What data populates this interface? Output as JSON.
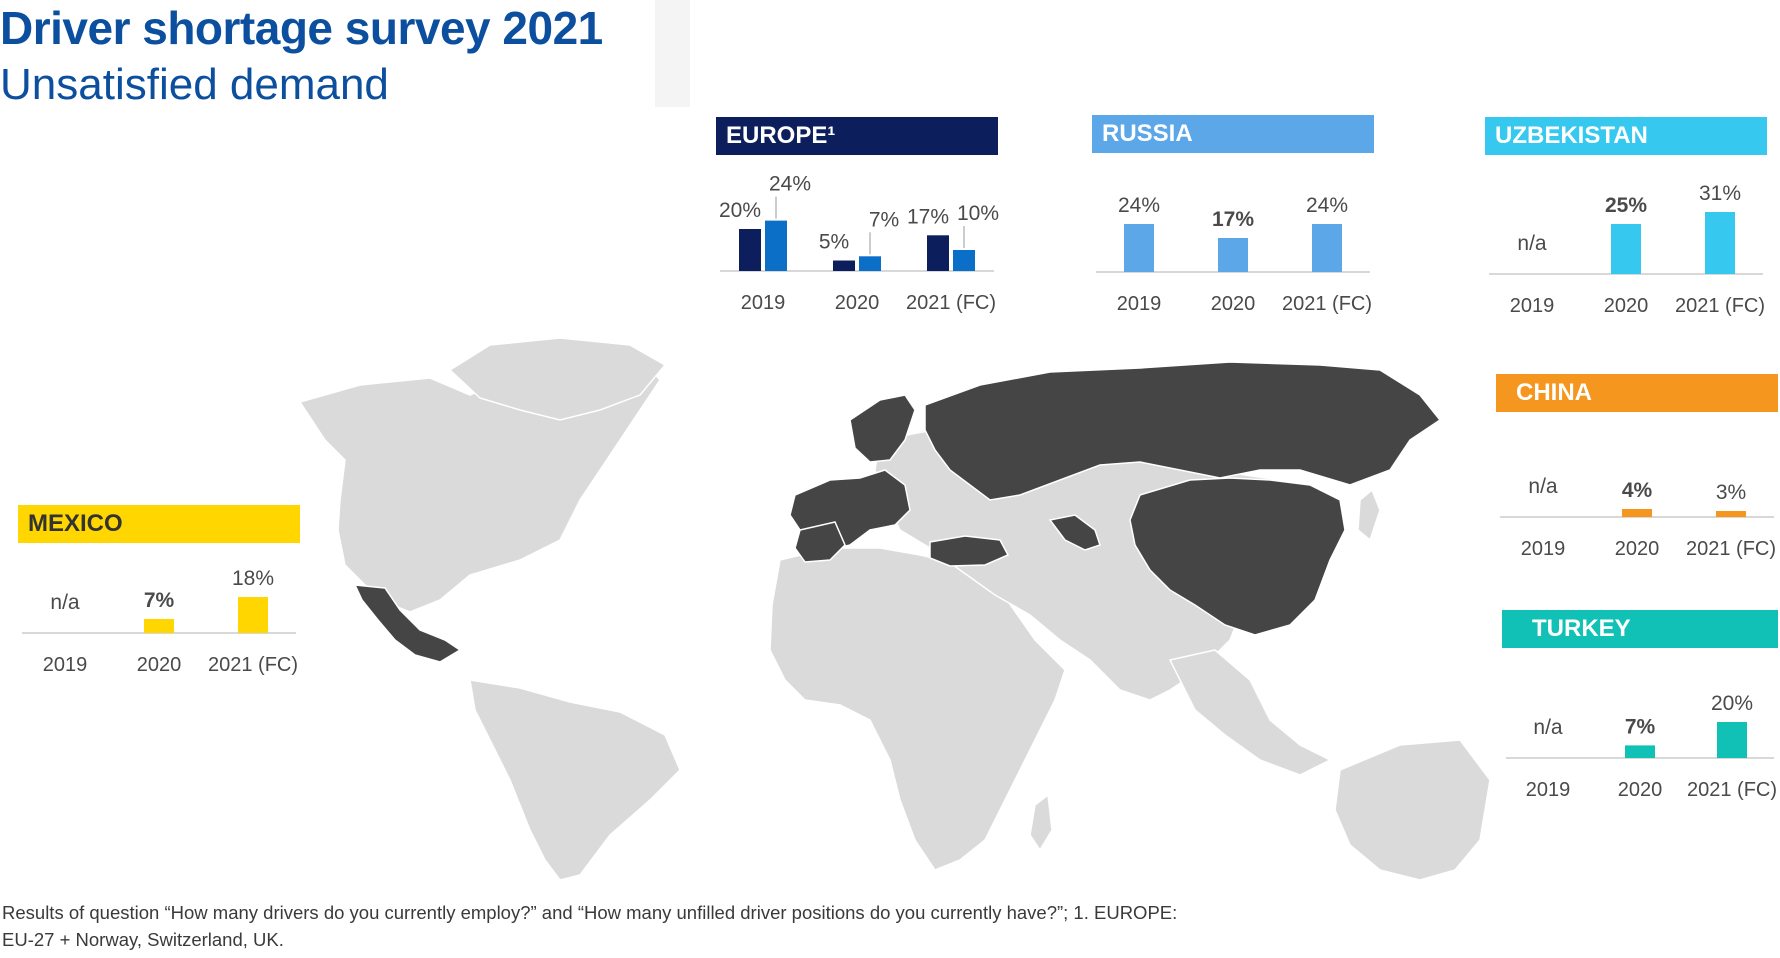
{
  "title": "Driver shortage survey 2021",
  "subtitle": "Unsatisfied demand",
  "footnote": "Results of question “How many drivers do you currently employ?” and “How many unfilled driver positions do you currently have?”; 1. EUROPE: EU-27 + Norway, Switzerland, UK.",
  "colors": {
    "map_land": "#dadada",
    "map_highlight": "#454545",
    "europe_dark": "#0c1f5c",
    "europe_light": "#0b6fc7",
    "russia": "#5ba7e8",
    "uzbekistan": "#37c8f0",
    "china": "#f5961e",
    "turkey": "#12c1b6",
    "mexico": "#ffd600"
  },
  "chart_data": [
    {
      "type": "bar",
      "title": "EUROPE¹",
      "categories": [
        "2019",
        "2020",
        "2021 (FC)"
      ],
      "series": [
        {
          "values": [
            20,
            5,
            17
          ],
          "labels": [
            "20%",
            "5%",
            "17%"
          ]
        },
        {
          "values": [
            24,
            7,
            10
          ],
          "labels": [
            "24%",
            "7%",
            "10%"
          ]
        }
      ]
    },
    {
      "type": "bar",
      "title": "RUSSIA",
      "categories": [
        "2019",
        "2020",
        "2021 (FC)"
      ],
      "series": [
        {
          "values": [
            24,
            17,
            24
          ],
          "labels": [
            "24%",
            "17%",
            "24%"
          ]
        }
      ]
    },
    {
      "type": "bar",
      "title": "UZBEKISTAN",
      "categories": [
        "2019",
        "2020",
        "2021 (FC)"
      ],
      "series": [
        {
          "values": [
            null,
            25,
            31
          ],
          "labels": [
            "n/a",
            "25%",
            "31%"
          ]
        }
      ]
    },
    {
      "type": "bar",
      "title": "CHINA",
      "categories": [
        "2019",
        "2020",
        "2021 (FC)"
      ],
      "series": [
        {
          "values": [
            null,
            4,
            3
          ],
          "labels": [
            "n/a",
            "4%",
            "3%"
          ]
        }
      ]
    },
    {
      "type": "bar",
      "title": "TURKEY",
      "categories": [
        "2019",
        "2020",
        "2021 (FC)"
      ],
      "series": [
        {
          "values": [
            null,
            7,
            20
          ],
          "labels": [
            "n/a",
            "7%",
            "20%"
          ]
        }
      ]
    },
    {
      "type": "bar",
      "title": "MEXICO",
      "categories": [
        "2019",
        "2020",
        "2021 (FC)"
      ],
      "series": [
        {
          "values": [
            null,
            7,
            18
          ],
          "labels": [
            "n/a",
            "7%",
            "18%"
          ]
        }
      ]
    }
  ]
}
